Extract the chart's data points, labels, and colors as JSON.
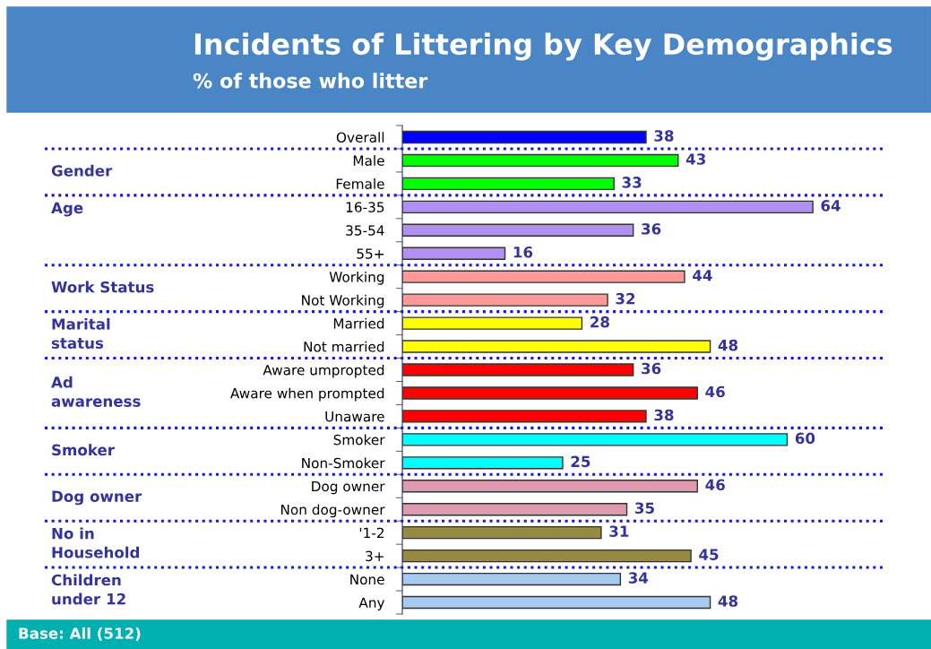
{
  "chart_data": {
    "type": "bar",
    "orientation": "horizontal",
    "title": "Incidents of Littering by Key Demographics",
    "subtitle": "% of those who litter",
    "categories": [
      "Overall",
      "Male",
      "Female",
      "16-35",
      "35-54",
      "55+",
      "Working",
      "Not Working",
      "Married",
      "Not married",
      "Aware umpropted",
      "Aware when prompted",
      "Unaware",
      "Smoker",
      "Non-Smoker",
      "Dog owner",
      "Non dog-owner",
      "'1-2",
      "3+",
      "None",
      "Any"
    ],
    "values": [
      38,
      43,
      33,
      64,
      36,
      16,
      44,
      32,
      28,
      48,
      36,
      46,
      38,
      60,
      25,
      46,
      35,
      31,
      45,
      34,
      48
    ],
    "colors": [
      "#0000ff",
      "#00ff00",
      "#00ff00",
      "#b090f0",
      "#b090f0",
      "#b090f0",
      "#ff9999",
      "#ff9999",
      "#ffff00",
      "#ffff00",
      "#ff0000",
      "#ff0000",
      "#ff0000",
      "#00ffff",
      "#00ffff",
      "#e09ab0",
      "#e09ab0",
      "#968a40",
      "#968a40",
      "#a6caf0",
      "#a6caf0"
    ],
    "data_labels": true,
    "annotations": [
      "Gender",
      "Age",
      "Work Status",
      "Marital\nstatus",
      "Ad\nawareness",
      "Smoker",
      "Dog owner",
      "No in\nHousehold",
      "Children\nunder 12",
      "Base: All (512)"
    ]
  }
}
